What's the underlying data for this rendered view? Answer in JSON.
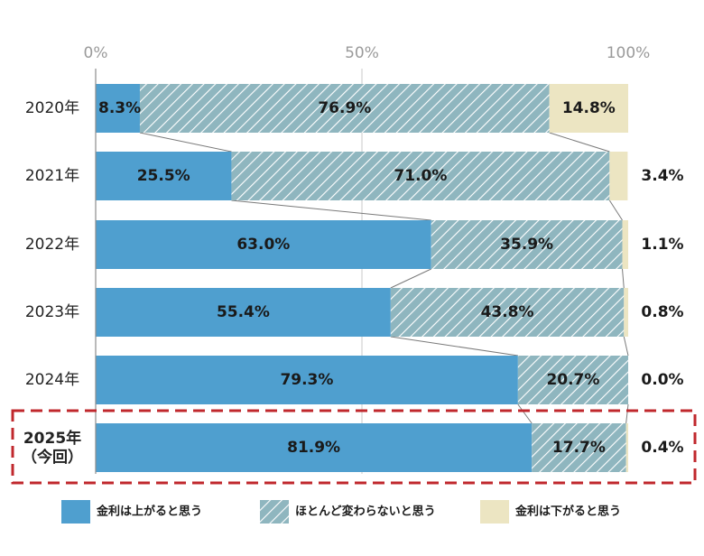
{
  "chart_data": {
    "type": "bar",
    "orientation": "horizontal",
    "stacked": "percent",
    "categories": [
      "2020年",
      "2021年",
      "2022年",
      "2023年",
      "2024年",
      "2025年"
    ],
    "category_notes": [
      "",
      "",
      "",
      "",
      "",
      "（今回）"
    ],
    "highlight_category": "2025年",
    "series": [
      {
        "name": "金利は上がると思う",
        "values": [
          8.3,
          25.5,
          63.0,
          55.4,
          79.3,
          81.9
        ],
        "color": "#4f9fcf"
      },
      {
        "name": "ほとんど変わらないと思う",
        "values": [
          76.9,
          71.0,
          35.9,
          43.8,
          20.7,
          17.7
        ],
        "color": "#8fb6bf",
        "pattern": "diagonal-hatch"
      },
      {
        "name": "金利は下がると思う",
        "values": [
          14.8,
          3.4,
          1.1,
          0.8,
          0.0,
          0.4
        ],
        "color": "#ece5c2"
      }
    ],
    "value_labels": [
      [
        "8.3%",
        "76.9%",
        "14.8%"
      ],
      [
        "25.5%",
        "71.0%",
        "3.4%"
      ],
      [
        "63.0%",
        "35.9%",
        "1.1%"
      ],
      [
        "55.4%",
        "43.8%",
        "0.8%"
      ],
      [
        "79.3%",
        "20.7%",
        "0.0%"
      ],
      [
        "81.9%",
        "17.7%",
        "0.4%"
      ]
    ],
    "x_ticks": [
      "0%",
      "50%",
      "100%"
    ],
    "xlim": [
      0,
      100
    ],
    "grid": true,
    "connector_lines": true,
    "legend_position": "bottom",
    "highlight_color": "#c0282d"
  }
}
